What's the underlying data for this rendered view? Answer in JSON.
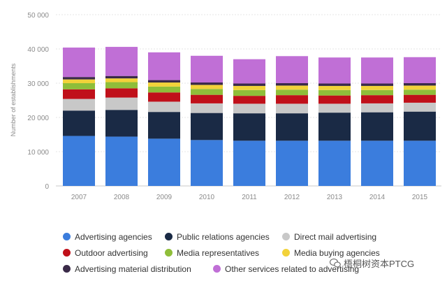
{
  "chart_data": {
    "type": "bar",
    "stacked": true,
    "title": "",
    "xlabel": "",
    "ylabel": "Number of establishments",
    "ylim": [
      0,
      50000
    ],
    "yticks": [
      0,
      10000,
      20000,
      30000,
      40000,
      50000
    ],
    "ytick_labels": [
      "0",
      "10 000",
      "20 000",
      "30 000",
      "40 000",
      "50 000"
    ],
    "grid": true,
    "legend_position": "bottom",
    "categories": [
      "2007",
      "2008",
      "2009",
      "2010",
      "2011",
      "2012",
      "2013",
      "2014",
      "2015"
    ],
    "series": [
      {
        "name": "Advertising agencies",
        "color": "#3b7ddd",
        "values": [
          14600,
          14400,
          13800,
          13400,
          13200,
          13200,
          13200,
          13200,
          13200
        ]
      },
      {
        "name": "Public relations agencies",
        "color": "#1a2a45",
        "values": [
          7400,
          7800,
          7800,
          7900,
          8000,
          8000,
          8200,
          8300,
          8500
        ]
      },
      {
        "name": "Direct mail advertising",
        "color": "#c8c8c8",
        "values": [
          3400,
          3600,
          3000,
          2800,
          2800,
          2800,
          2600,
          2600,
          2600
        ]
      },
      {
        "name": "Outdoor advertising",
        "color": "#c0101a",
        "values": [
          2800,
          2700,
          2700,
          2500,
          2300,
          2500,
          2400,
          2400,
          2300
        ]
      },
      {
        "name": "Media representatives",
        "color": "#8fbe3a",
        "values": [
          1800,
          1800,
          1700,
          1700,
          1700,
          1600,
          1600,
          1500,
          1500
        ]
      },
      {
        "name": "Media buying agencies",
        "color": "#f2d23a",
        "values": [
          1100,
          1100,
          1200,
          1200,
          1200,
          1200,
          1200,
          1200,
          1200
        ]
      },
      {
        "name": "Advertising material distribution",
        "color": "#3a2a48",
        "values": [
          700,
          700,
          700,
          700,
          700,
          700,
          700,
          700,
          700
        ]
      },
      {
        "name": "Other services related to advertising",
        "color": "#c06fd6",
        "values": [
          8600,
          8500,
          8100,
          7800,
          7100,
          7900,
          7600,
          7600,
          7600
        ]
      }
    ]
  },
  "watermark": {
    "text": "梧桐树资本PTCG",
    "icon": "wechat-icon"
  }
}
